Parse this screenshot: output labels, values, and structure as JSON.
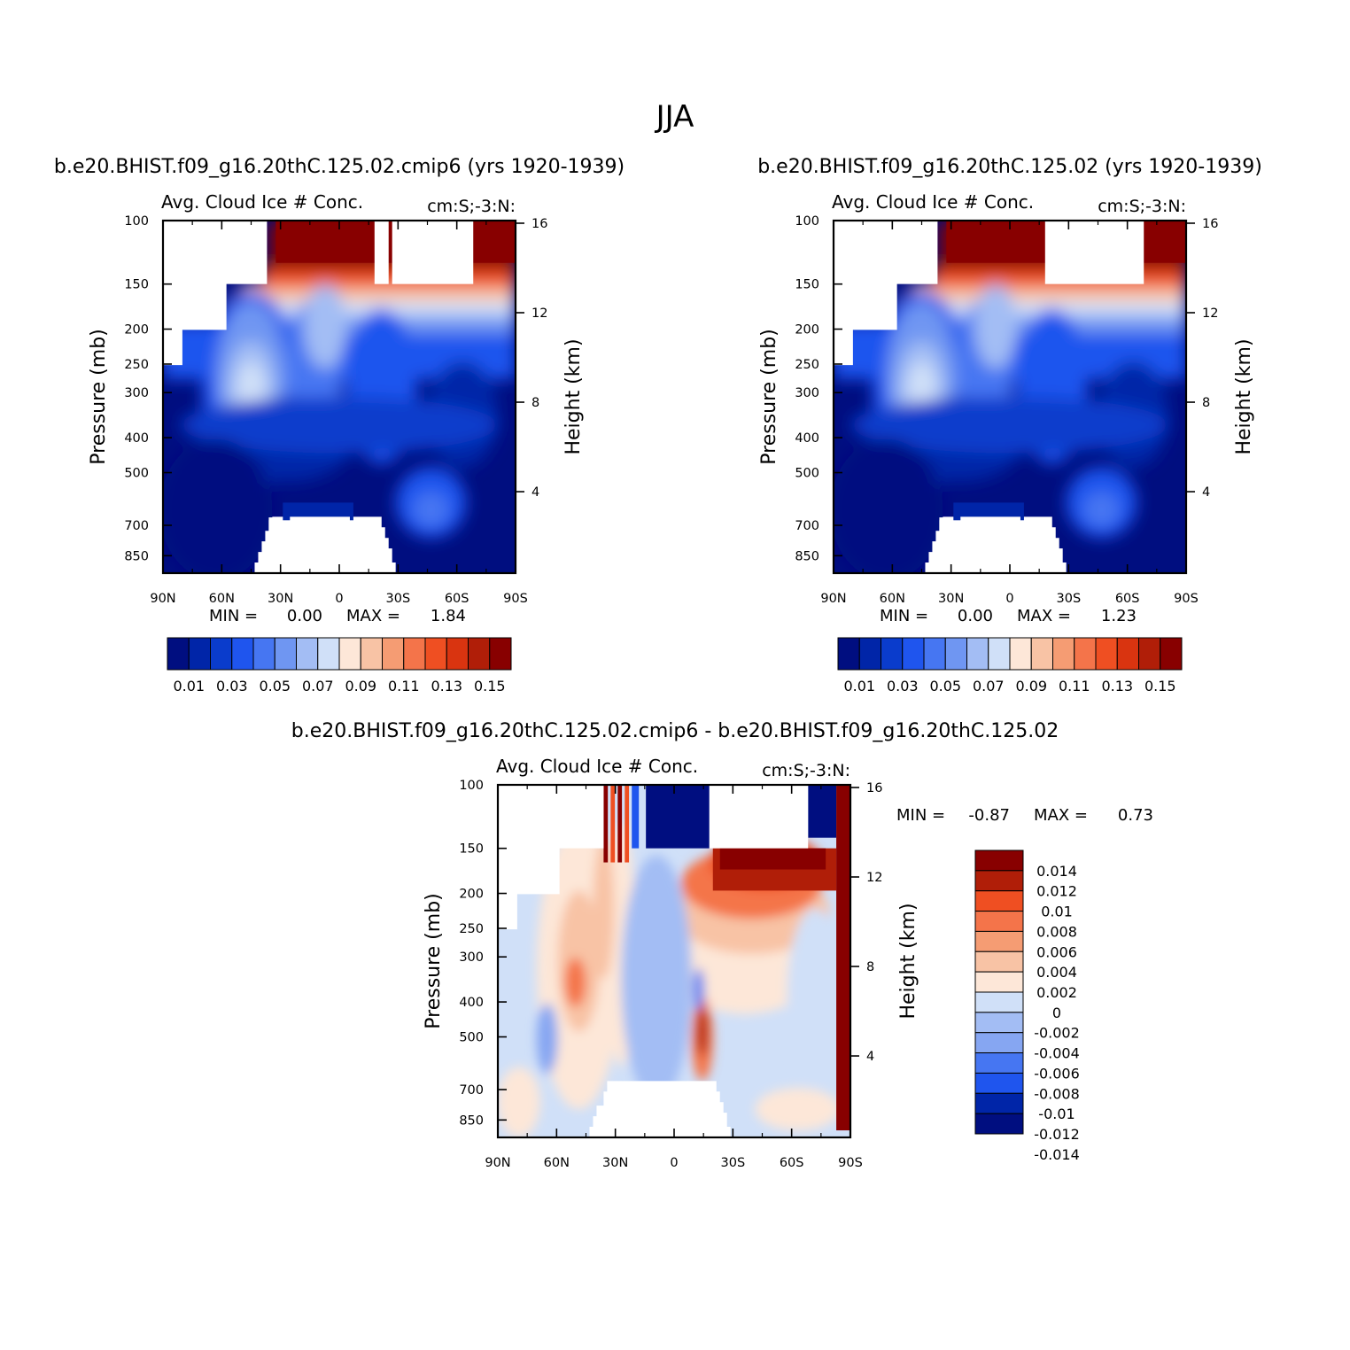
{
  "figure": {
    "title": "JJA"
  },
  "colors": {
    "blue_red_16": [
      "#000e80",
      "#0025a8",
      "#0a3ccc",
      "#1f55ee",
      "#4676f2",
      "#6f96f2",
      "#a3bdf4",
      "#d0e0f8",
      "#fde7d8",
      "#f8c3a5",
      "#f59c73",
      "#f4744a",
      "#ef4f22",
      "#d93410",
      "#b01e08",
      "#880000"
    ],
    "blue_red_14": [
      "#000e80",
      "#0025a8",
      "#1f55ee",
      "#4676f2",
      "#86a6f2",
      "#a3bdf4",
      "#d0e0f8",
      "#fde7d8",
      "#f8c3a5",
      "#f59c73",
      "#f4744a",
      "#ef4f22",
      "#b01e08",
      "#880000"
    ]
  },
  "panels": [
    {
      "id": "test",
      "case_title": "b.e20.BHIST.f09_g16.20thC.125.02.cmip6 (yrs 1920-1939)",
      "left_title": "Avg. Cloud Ice # Conc.",
      "right_title": "cm:S;-3:N:",
      "stats": {
        "min_label": "MIN =",
        "min": "0.00",
        "max_label": "MAX =",
        "max": "1.84"
      },
      "colorbar_labels": [
        "0.01",
        "0.03",
        "0.05",
        "0.07",
        "0.09",
        "0.11",
        "0.13",
        "0.15"
      ]
    },
    {
      "id": "control",
      "case_title": "b.e20.BHIST.f09_g16.20thC.125.02 (yrs 1920-1939)",
      "left_title": "Avg. Cloud Ice # Conc.",
      "right_title": "cm:S;-3:N:",
      "stats": {
        "min_label": "MIN =",
        "min": "0.00",
        "max_label": "MAX =",
        "max": "1.23"
      },
      "colorbar_labels": [
        "0.01",
        "0.03",
        "0.05",
        "0.07",
        "0.09",
        "0.11",
        "0.13",
        "0.15"
      ]
    },
    {
      "id": "difference",
      "case_title": "b.e20.BHIST.f09_g16.20thC.125.02.cmip6 - b.e20.BHIST.f09_g16.20thC.125.02",
      "left_title": "Avg. Cloud Ice # Conc.",
      "right_title": "cm:S;-3:N:",
      "stats": {
        "min_label": "MIN =",
        "min": "-0.87",
        "max_label": "MAX =",
        "max": "0.73"
      },
      "colorbar_labels": [
        "0.014",
        "0.012",
        "0.01",
        "0.008",
        "0.006",
        "0.004",
        "0.002",
        "0",
        "-0.002",
        "-0.004",
        "-0.006",
        "-0.008",
        "-0.01",
        "-0.012",
        "-0.014"
      ]
    }
  ],
  "chart_data": [
    {
      "type": "heatmap",
      "title": "b.e20.BHIST.f09_g16.20thC.125.02.cmip6 (yrs 1920-1939)",
      "xlabel": "",
      "ylabel": "Pressure (mb)",
      "y2label": "Height (km)",
      "x_ticks": [
        "90N",
        "60N",
        "30N",
        "0",
        "30S",
        "60S",
        "90S"
      ],
      "x_range": [
        90,
        -90
      ],
      "y_ticks": [
        100,
        150,
        200,
        250,
        300,
        400,
        500,
        700,
        850
      ],
      "y_range": [
        100,
        950
      ],
      "y_scale": "log",
      "y2_ticks": [
        16,
        12,
        8,
        4
      ],
      "levels": [
        0.01,
        0.02,
        0.03,
        0.04,
        0.05,
        0.06,
        0.07,
        0.08,
        0.09,
        0.1,
        0.11,
        0.12,
        0.13,
        0.14,
        0.15
      ],
      "min": 0.0,
      "max": 1.84
    },
    {
      "type": "heatmap",
      "title": "b.e20.BHIST.f09_g16.20thC.125.02 (yrs 1920-1939)",
      "xlabel": "",
      "ylabel": "Pressure (mb)",
      "y2label": "Height (km)",
      "x_ticks": [
        "90N",
        "60N",
        "30N",
        "0",
        "30S",
        "60S",
        "90S"
      ],
      "x_range": [
        90,
        -90
      ],
      "y_ticks": [
        100,
        150,
        200,
        250,
        300,
        400,
        500,
        700,
        850
      ],
      "y_range": [
        100,
        950
      ],
      "y_scale": "log",
      "y2_ticks": [
        16,
        12,
        8,
        4
      ],
      "levels": [
        0.01,
        0.02,
        0.03,
        0.04,
        0.05,
        0.06,
        0.07,
        0.08,
        0.09,
        0.1,
        0.11,
        0.12,
        0.13,
        0.14,
        0.15
      ],
      "min": 0.0,
      "max": 1.23
    },
    {
      "type": "heatmap",
      "title": "b.e20.BHIST.f09_g16.20thC.125.02.cmip6 - b.e20.BHIST.f09_g16.20thC.125.02",
      "xlabel": "",
      "ylabel": "Pressure (mb)",
      "y2label": "Height (km)",
      "x_ticks": [
        "90N",
        "60N",
        "30N",
        "0",
        "30S",
        "60S",
        "90S"
      ],
      "x_range": [
        90,
        -90
      ],
      "y_ticks": [
        100,
        150,
        200,
        250,
        300,
        400,
        500,
        700,
        850
      ],
      "y_range": [
        100,
        950
      ],
      "y_scale": "log",
      "y2_ticks": [
        16,
        12,
        8,
        4
      ],
      "levels": [
        -0.014,
        -0.012,
        -0.01,
        -0.008,
        -0.006,
        -0.004,
        -0.002,
        0,
        0.002,
        0.004,
        0.006,
        0.008,
        0.01,
        0.012,
        0.014
      ],
      "min": -0.87,
      "max": 0.73
    }
  ]
}
